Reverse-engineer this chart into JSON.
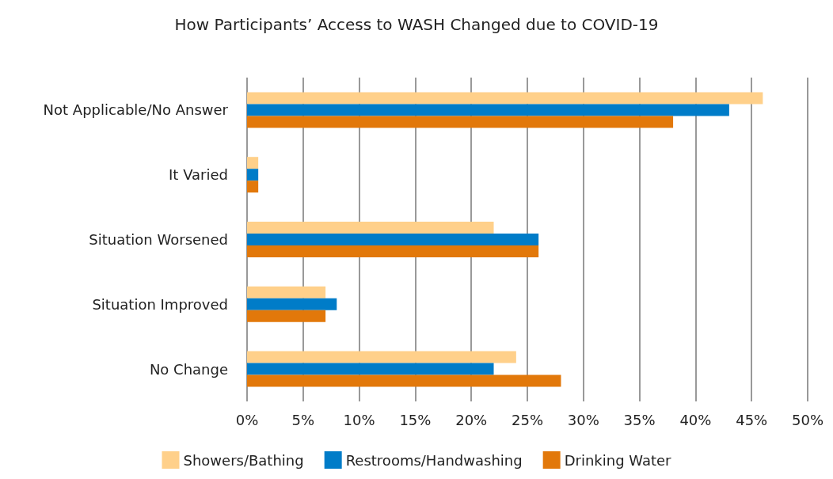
{
  "chart_data": {
    "type": "bar",
    "orientation": "horizontal",
    "title": "How Participants’ Access to WASH Changed due to COVID-19",
    "categories": [
      "Not Applicable/No Answer",
      "It Varied",
      "Situation Worsened",
      "Situation Improved",
      "No Change"
    ],
    "series": [
      {
        "name": "Showers/Bathing",
        "color": "#ffd08a",
        "values": [
          46,
          1,
          22,
          7,
          24
        ]
      },
      {
        "name": "Restrooms/Handwashing",
        "color": "#007cc8",
        "values": [
          43,
          1,
          26,
          8,
          22
        ]
      },
      {
        "name": "Drinking Water",
        "color": "#e2780a",
        "values": [
          38,
          1,
          26,
          7,
          28
        ]
      }
    ],
    "xlim": [
      0,
      50
    ],
    "xticks": [
      {
        "value": 0,
        "label": "0%"
      },
      {
        "value": 5,
        "label": "5%"
      },
      {
        "value": 10,
        "label": "10%"
      },
      {
        "value": 15,
        "label": "15%"
      },
      {
        "value": 20,
        "label": "20%"
      },
      {
        "value": 25,
        "label": "25%"
      },
      {
        "value": 30,
        "label": "30%"
      },
      {
        "value": 35,
        "label": "35%"
      },
      {
        "value": 40,
        "label": "40%"
      },
      {
        "value": 45,
        "label": "45%"
      },
      {
        "value": 50,
        "label": "50%"
      }
    ],
    "grid": "x",
    "legend": "bottom"
  }
}
